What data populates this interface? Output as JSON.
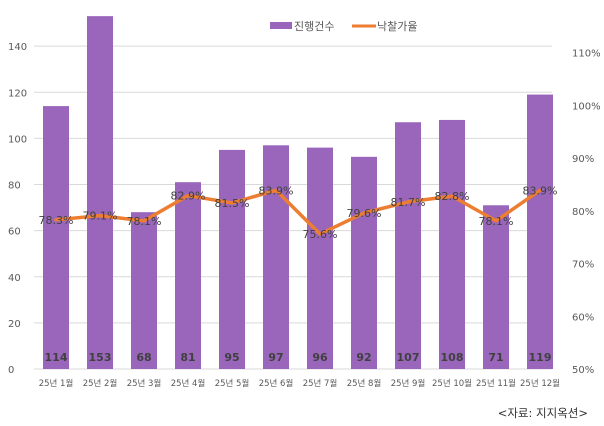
{
  "chart_data": {
    "type": "bar+line",
    "categories": [
      "25년 1월",
      "25년 2월",
      "25년 3월",
      "25년 4월",
      "25년 5월",
      "25년 6월",
      "25년 7월",
      "25년 8월",
      "25년 9월",
      "25년 10월",
      "25년 11월",
      "25년 12월"
    ],
    "series": [
      {
        "name": "진행건수",
        "type": "bar",
        "axis": "left",
        "color": "#9966BB",
        "values": [
          114,
          153,
          68,
          81,
          95,
          97,
          96,
          92,
          107,
          108,
          71,
          119
        ],
        "labels": [
          "114",
          "153",
          "68",
          "81",
          "95",
          "97",
          "96",
          "92",
          "107",
          "108",
          "71",
          "119"
        ]
      },
      {
        "name": "낙찰가율",
        "type": "line",
        "axis": "right",
        "color": "#ED7D31",
        "values": [
          78.3,
          79.1,
          78.1,
          82.9,
          81.5,
          83.9,
          75.6,
          79.6,
          81.7,
          82.8,
          78.1,
          83.9
        ],
        "labels": [
          "78.3%",
          "79.1%",
          "78.1%",
          "82.9%",
          "81.5%",
          "83.9%",
          "75.6%",
          "79.6%",
          "81.7%",
          "82.8%",
          "78.1%",
          "83.9%"
        ]
      }
    ],
    "y_left": {
      "min": 0,
      "max": 160,
      "ticks": [
        "0",
        "20",
        "40",
        "60",
        "80",
        "100",
        "120",
        "140"
      ],
      "tick_values": [
        0,
        20,
        40,
        60,
        80,
        100,
        120,
        140
      ]
    },
    "y_right": {
      "min": 50,
      "max": 120,
      "ticks": [
        "50%",
        "60%",
        "70%",
        "80%",
        "90%",
        "100%",
        "110%"
      ],
      "tick_values": [
        50,
        60,
        70,
        80,
        90,
        100,
        110
      ]
    },
    "grid": true,
    "legend_position": "top"
  },
  "source": "<자료: 지지옥션>"
}
